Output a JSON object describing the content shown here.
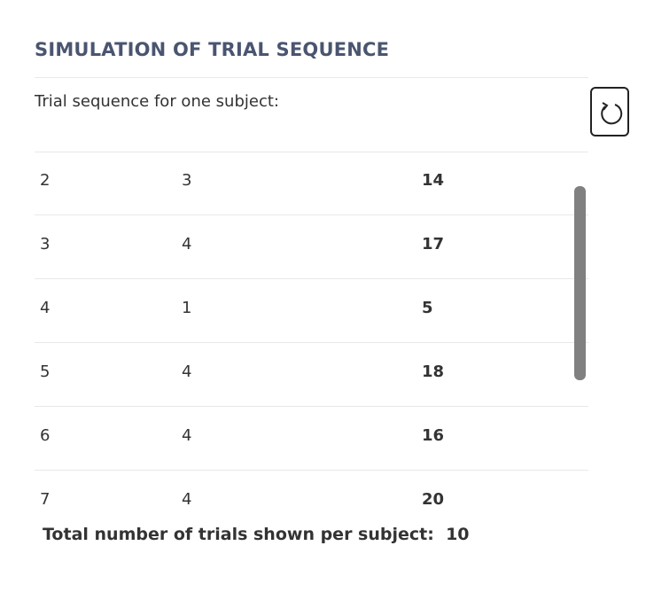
{
  "header": {
    "title": "SIMULATION OF TRIAL SEQUENCE",
    "subtitle": "Trial sequence for one subject:"
  },
  "table": {
    "rows": [
      [
        "2",
        "3",
        "14"
      ],
      [
        "3",
        "4",
        "17"
      ],
      [
        "4",
        "1",
        "5"
      ],
      [
        "5",
        "4",
        "18"
      ],
      [
        "6",
        "4",
        "16"
      ],
      [
        "7",
        "4",
        "20"
      ]
    ]
  },
  "footer": {
    "label": "Total number of trials shown per subject:",
    "value": "10"
  }
}
